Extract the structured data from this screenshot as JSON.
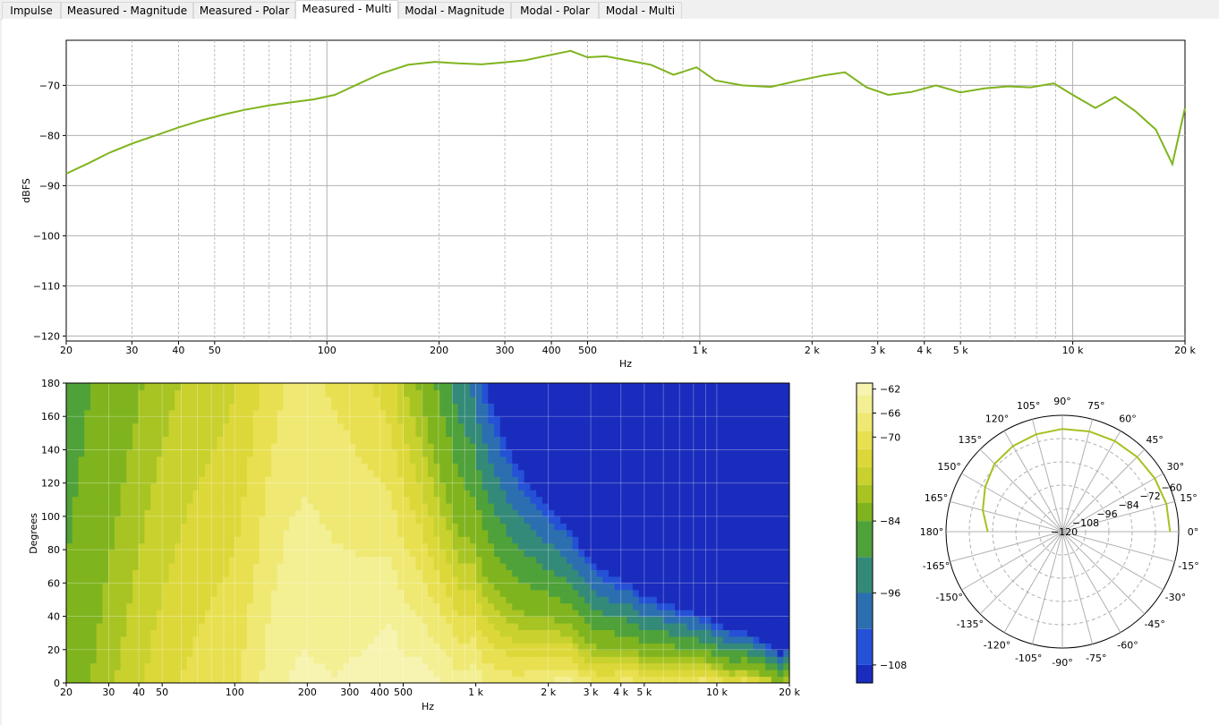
{
  "tabs": [
    {
      "label": "Impulse",
      "active": false
    },
    {
      "label": "Measured - Magnitude",
      "active": false
    },
    {
      "label": "Measured - Polar",
      "active": false
    },
    {
      "label": "Measured - Multi",
      "active": true
    },
    {
      "label": "Modal - Magnitude",
      "active": false
    },
    {
      "label": "Modal - Polar",
      "active": false
    },
    {
      "label": "Modal - Multi",
      "active": false
    }
  ],
  "colors": {
    "line": "#7fb41e",
    "polar_line": "#a8c020",
    "grid": "#b0b0b0"
  },
  "chart_data": [
    {
      "type": "line",
      "title": "",
      "xlabel": "Hz",
      "ylabel": "dBFS",
      "xscale": "log",
      "xlim": [
        20,
        20000
      ],
      "ylim": [
        -121,
        -61
      ],
      "grid": true,
      "x_ticks": [
        20,
        30,
        40,
        50,
        100,
        200,
        300,
        400,
        500,
        1000,
        2000,
        3000,
        4000,
        5000,
        10000,
        20000
      ],
      "x_tick_labels": [
        "20",
        "30",
        "40",
        "50",
        "100",
        "200",
        "300",
        "400",
        "500",
        "1 k",
        "2 k",
        "3 k",
        "4 k",
        "5 k",
        "10 k",
        "20 k"
      ],
      "y_ticks": [
        -70,
        -80,
        -90,
        -100,
        -110,
        -120
      ],
      "y_tick_labels": [
        "−70",
        "−80",
        "−90",
        "−100",
        "−110",
        "−120"
      ],
      "series": [
        {
          "x": [
            20,
            23,
            26,
            30,
            35,
            40,
            46,
            53,
            60,
            70,
            80,
            92,
            105,
            120,
            140,
            165,
            195,
            225,
            260,
            300,
            340,
            400,
            450,
            500,
            560,
            640,
            740,
            850,
            980,
            1100,
            1300,
            1550,
            1850,
            2150,
            2450,
            2800,
            3200,
            3700,
            4300,
            5000,
            5800,
            6700,
            7700,
            8900,
            10000,
            11500,
            13000,
            14700,
            16700,
            18500,
            20000
          ],
          "y": [
            -87.6,
            -85.5,
            -83.5,
            -81.6,
            -79.9,
            -78.4,
            -77.0,
            -75.8,
            -74.9,
            -74.0,
            -73.4,
            -72.8,
            -71.9,
            -69.9,
            -67.6,
            -65.9,
            -65.3,
            -65.6,
            -65.8,
            -65.4,
            -65.0,
            -63.9,
            -63.1,
            -64.4,
            -64.2,
            -65.0,
            -65.9,
            -67.9,
            -66.4,
            -69.0,
            -70.0,
            -70.3,
            -69.0,
            -68.0,
            -67.4,
            -70.4,
            -71.9,
            -71.3,
            -70.0,
            -71.4,
            -70.6,
            -70.2,
            -70.4,
            -69.6,
            -71.9,
            -74.5,
            -72.3,
            -75.1,
            -78.8,
            -85.7,
            -74.5
          ]
        }
      ]
    },
    {
      "type": "heatmap",
      "title": "",
      "xlabel": "Hz",
      "ylabel": "Degrees",
      "xscale": "log",
      "xlim": [
        20,
        20000
      ],
      "ylim": [
        0,
        180
      ],
      "x_ticks": [
        20,
        30,
        40,
        50,
        100,
        200,
        300,
        400,
        500,
        1000,
        2000,
        3000,
        4000,
        5000,
        10000,
        20000
      ],
      "x_tick_labels": [
        "20",
        "30",
        "40",
        "50",
        "100",
        "200",
        "300",
        "400",
        "500",
        "1 k",
        "2 k",
        "3 k",
        "4 k",
        "5 k",
        "10 k",
        "20 k"
      ],
      "y_ticks": [
        0,
        20,
        40,
        60,
        80,
        100,
        120,
        140,
        160,
        180
      ],
      "colorbar": {
        "range": [
          -111,
          -61
        ],
        "levels": [
          -111,
          -108,
          -102,
          -96,
          -90,
          -84,
          -81,
          -78,
          -75,
          -72,
          -69,
          -66,
          -63,
          -61
        ],
        "colors": [
          "#1a2cbe",
          "#2451d6",
          "#2c6fb0",
          "#348a78",
          "#4fa13a",
          "#7fb41e",
          "#a7c423",
          "#c9d12e",
          "#dcd83a",
          "#e8e050",
          "#efe873",
          "#f3ef93",
          "#f7f3b0",
          "#fbf8cc"
        ],
        "tick_values": [
          -62,
          -66,
          -70,
          -84,
          -96,
          -108
        ],
        "tick_labels": [
          "−62",
          "−66",
          "−70",
          "−84",
          "−96",
          "−108"
        ]
      },
      "surface_model": "approximate contour: response near the upper trace on-axis, falling with angle and frequency"
    },
    {
      "type": "line",
      "title": "",
      "subtype": "polar",
      "angle_range_deg": [
        0,
        180
      ],
      "radial_ticks": [
        -120,
        -108,
        -96,
        -84,
        -72,
        -60
      ],
      "radial_tick_labels": [
        "−120",
        "−108",
        "−96",
        "−84",
        "−72",
        "−60"
      ],
      "angle_tick_labels": [
        "0°",
        "15°",
        "30°",
        "45°",
        "60°",
        "75°",
        "90°",
        "105°",
        "120°",
        "135°",
        "150°",
        "165°",
        "180°",
        "-165°",
        "-150°",
        "-135°",
        "-120°",
        "-105°",
        "-90°",
        "-75°",
        "-60°",
        "-45°",
        "-30°",
        "-15°"
      ],
      "series": [
        {
          "angles": [
            0,
            15,
            30,
            45,
            60,
            75,
            90,
            105,
            120,
            135,
            150,
            165,
            180
          ],
          "values": [
            -64.5,
            -64.5,
            -65.0,
            -65.5,
            -66.0,
            -66.5,
            -67.0,
            -68.0,
            -69.0,
            -70.5,
            -74.0,
            -77.5,
            -81.5
          ]
        }
      ]
    }
  ]
}
